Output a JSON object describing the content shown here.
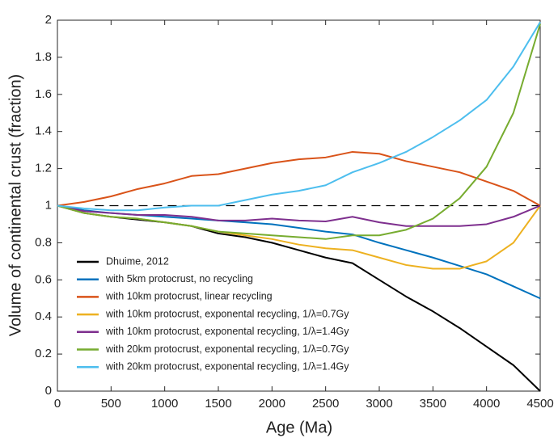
{
  "chart_data": {
    "type": "line",
    "x_label": "Age (Ma)",
    "y_label": "Volume of continental crust (fraction)",
    "x": [
      0,
      250,
      500,
      750,
      1000,
      1250,
      1500,
      1750,
      2000,
      2250,
      2500,
      2750,
      3000,
      3250,
      3500,
      3750,
      4000,
      4250,
      4500
    ],
    "series": [
      {
        "name": "Dhuime, 2012",
        "color": "#000000",
        "values": [
          1,
          0.96,
          0.94,
          0.925,
          0.91,
          0.89,
          0.85,
          0.83,
          0.8,
          0.76,
          0.72,
          0.69,
          0.6,
          0.51,
          0.43,
          0.34,
          0.24,
          0.14,
          0
        ]
      },
      {
        "name": "with 5km protocrust, no recycling",
        "color": "#0072bd",
        "values": [
          1,
          0.975,
          0.96,
          0.95,
          0.94,
          0.93,
          0.92,
          0.91,
          0.9,
          0.88,
          0.86,
          0.845,
          0.8,
          0.76,
          0.72,
          0.675,
          0.63,
          0.565,
          0.5
        ]
      },
      {
        "name": "with 10km protocrust, linear recycling",
        "color": "#d95319",
        "values": [
          1,
          1.02,
          1.05,
          1.09,
          1.12,
          1.16,
          1.17,
          1.2,
          1.23,
          1.25,
          1.26,
          1.29,
          1.28,
          1.24,
          1.21,
          1.18,
          1.13,
          1.08,
          1
        ]
      },
      {
        "name": "with 10km protocrust, exponental recycling, 1/λ=0.7Gy",
        "color": "#edb120",
        "values": [
          1,
          0.96,
          0.94,
          0.93,
          0.91,
          0.89,
          0.86,
          0.84,
          0.82,
          0.79,
          0.77,
          0.76,
          0.72,
          0.68,
          0.66,
          0.66,
          0.7,
          0.8,
          1
        ]
      },
      {
        "name": "with 10km protocrust, exponental recycling, 1/λ=1.4Gy",
        "color": "#7e2f8e",
        "values": [
          1,
          0.97,
          0.96,
          0.95,
          0.95,
          0.94,
          0.92,
          0.92,
          0.93,
          0.92,
          0.915,
          0.94,
          0.91,
          0.89,
          0.89,
          0.89,
          0.9,
          0.94,
          1
        ]
      },
      {
        "name": "with 20km protocrust, exponental recycling, 1/λ=0.7Gy",
        "color": "#77ac30",
        "values": [
          1,
          0.96,
          0.94,
          0.93,
          0.91,
          0.89,
          0.86,
          0.85,
          0.84,
          0.83,
          0.82,
          0.84,
          0.84,
          0.87,
          0.93,
          1.04,
          1.21,
          1.5,
          1.98
        ]
      },
      {
        "name": "with 20km protocrust, exponental recycling, 1/λ=1.4Gy",
        "color": "#4dbeee",
        "values": [
          1,
          0.985,
          0.975,
          0.975,
          0.99,
          1,
          1,
          1.03,
          1.06,
          1.08,
          1.11,
          1.18,
          1.23,
          1.29,
          1.37,
          1.46,
          1.57,
          1.75,
          1.99
        ]
      }
    ],
    "reference_line": {
      "y": 1,
      "x": [
        350,
        4500
      ]
    },
    "xlim": [
      0,
      4500
    ],
    "ylim": [
      0,
      2
    ],
    "xticks": [
      0,
      500,
      1000,
      1500,
      2000,
      2500,
      3000,
      3500,
      4000,
      4500
    ],
    "yticks": [
      0,
      0.2,
      0.4,
      0.6,
      0.8,
      1,
      1.2,
      1.4,
      1.6,
      1.8,
      2
    ],
    "grid": false,
    "legend": "lower left"
  }
}
